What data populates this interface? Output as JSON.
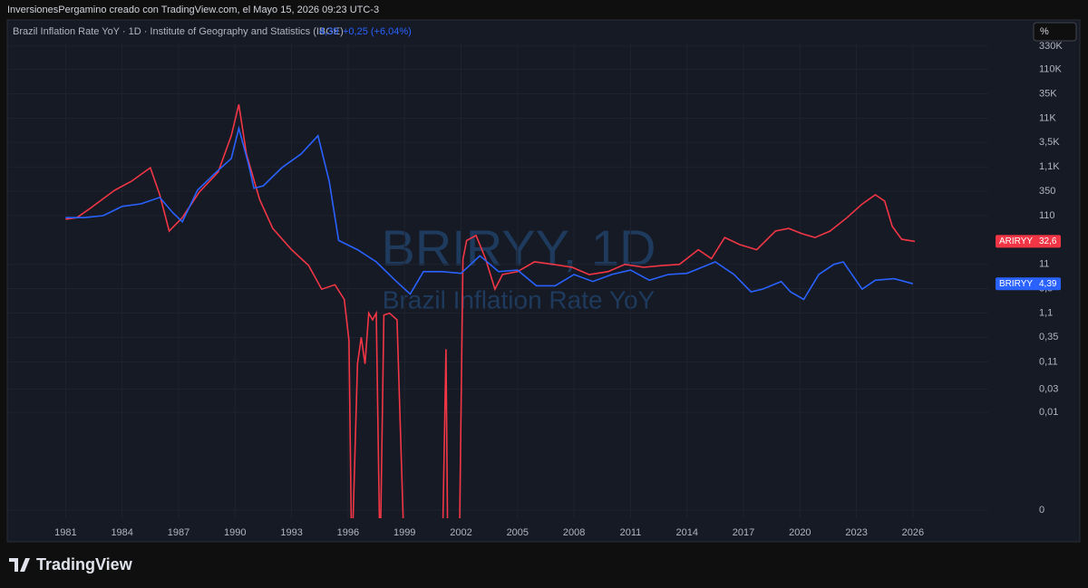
{
  "header": {
    "caption": "InversionesPergamino creado con TradingView.com, el Mayo 15, 2026 09:23 UTC-3"
  },
  "legend": {
    "title": "Brazil Inflation Rate YoY · 1D · Institute of Geography and Statistics (IBGE)",
    "last": "4,39",
    "change": "+0,25 (+6,04%)"
  },
  "watermark": {
    "symbol": "BRIRYY, 1D",
    "name": "Brazil Inflation Rate YoY"
  },
  "unit_button": "%",
  "footer": {
    "brand": "TradingView"
  },
  "chart_data": {
    "type": "line",
    "log_scale": true,
    "grid": true,
    "xlim": [
      1977.9,
      2030
    ],
    "xticks": [
      1981,
      1984,
      1987,
      1990,
      1993,
      1996,
      1999,
      2002,
      2005,
      2008,
      2011,
      2014,
      2017,
      2020,
      2023,
      2026
    ],
    "ylim": [
      0,
      374000
    ],
    "yticks": [
      {
        "value": 330000,
        "label": "330K"
      },
      {
        "value": 110000,
        "label": "110K"
      },
      {
        "value": 35000,
        "label": "35K"
      },
      {
        "value": 11000,
        "label": "11K"
      },
      {
        "value": 3500,
        "label": "3,5K"
      },
      {
        "value": 1100,
        "label": "1,1K"
      },
      350,
      110,
      11,
      {
        "value": 3.5,
        "label": "3,5"
      },
      {
        "value": 1.1,
        "label": "1,1"
      },
      {
        "value": 0.35,
        "label": "0,35"
      },
      {
        "value": 0.11,
        "label": "0,11"
      },
      {
        "value": 0.03,
        "label": "0,03"
      },
      {
        "value": 0.01,
        "label": "0,01"
      },
      0
    ],
    "series": [
      {
        "name": "ARIRYY",
        "color": "#f23645",
        "last_label": "32,6",
        "x": [
          1981,
          1981.6,
          1982.3,
          1983.6,
          1984.5,
          1985.5,
          1986,
          1986.5,
          1987.2,
          1988.1,
          1989.1,
          1989.8,
          1990.2,
          1990.6,
          1991.3,
          1992,
          1993,
          1993.9,
          1994.6,
          1995.3,
          1995.8,
          1996.05,
          1996.2,
          1996.5,
          1996.7,
          1996.9,
          1997.1,
          1997.3,
          1997.5,
          1997.7,
          1997.9,
          1998.2,
          1998.6,
          1999,
          2001,
          2001.2,
          2001.3,
          2001.9,
          2002.1,
          2002.3,
          2002.8,
          2003.3,
          2003.8,
          2004.2,
          2005,
          2005.9,
          2006.9,
          2007.9,
          2008.8,
          2009.8,
          2010.7,
          2011.7,
          2012.7,
          2013.6,
          2014.6,
          2015.3,
          2016,
          2016.8,
          2017.7,
          2018.7,
          2019.4,
          2020.1,
          2020.8,
          2021.6,
          2022.5,
          2023.3,
          2024,
          2024.5,
          2024.9,
          2025.4,
          2026.1
        ],
        "values": [
          93,
          100,
          155,
          365,
          560,
          1060,
          294,
          53,
          100,
          335,
          860,
          4800,
          21000,
          2020,
          237,
          60,
          22,
          10.5,
          3.4,
          4.2,
          2.1,
          0.3,
          -0.2,
          0.1,
          0.35,
          0.1,
          1.1,
          0.8,
          1.1,
          -0.2,
          1.0,
          1.1,
          0.8,
          -0.5,
          -1,
          0.2,
          -1,
          -1,
          14,
          34,
          43,
          14.4,
          3.4,
          6.8,
          7.8,
          12.4,
          11,
          9.6,
          6.8,
          7.8,
          11,
          9.6,
          10.4,
          11,
          22,
          14.4,
          39,
          28,
          22,
          53,
          60,
          47,
          39,
          53,
          100,
          190,
          294,
          218,
          66,
          36,
          32.6
        ]
      },
      {
        "name": "BRIRYY",
        "color": "#2962ff",
        "last_label": "4,39",
        "x": [
          1981,
          1982,
          1983,
          1984,
          1985,
          1986,
          1986.7,
          1987.2,
          1988,
          1989,
          1989.8,
          1990.2,
          1990.7,
          1991,
          1991.5,
          1992.5,
          1993.5,
          1994.4,
          1995,
          1995.5,
          1996.5,
          1997.5,
          1998.5,
          1999.3,
          2000,
          2001,
          2002,
          2003,
          2004,
          2005,
          2006,
          2007,
          2008,
          2009,
          2010,
          2011,
          2012,
          2013,
          2014,
          2015.5,
          2016.5,
          2017.4,
          2018,
          2019,
          2019.5,
          2020.2,
          2021,
          2021.8,
          2022.3,
          2023.3,
          2024,
          2025,
          2026
        ],
        "values": [
          100,
          100,
          110,
          170,
          192,
          260,
          125,
          82,
          365,
          860,
          1630,
          6800,
          1310,
          400,
          450,
          1070,
          2020,
          4800,
          560,
          34,
          22,
          12.4,
          5.2,
          2.7,
          7.8,
          7.8,
          7.2,
          16.5,
          7.8,
          8.4,
          4,
          4,
          6.8,
          4.9,
          6.8,
          8.4,
          5.2,
          6.8,
          7.2,
          12.4,
          6.8,
          3,
          3.4,
          4.9,
          3,
          2.1,
          6.8,
          11,
          12.4,
          3.4,
          5.2,
          5.6,
          4.39
        ]
      }
    ]
  }
}
